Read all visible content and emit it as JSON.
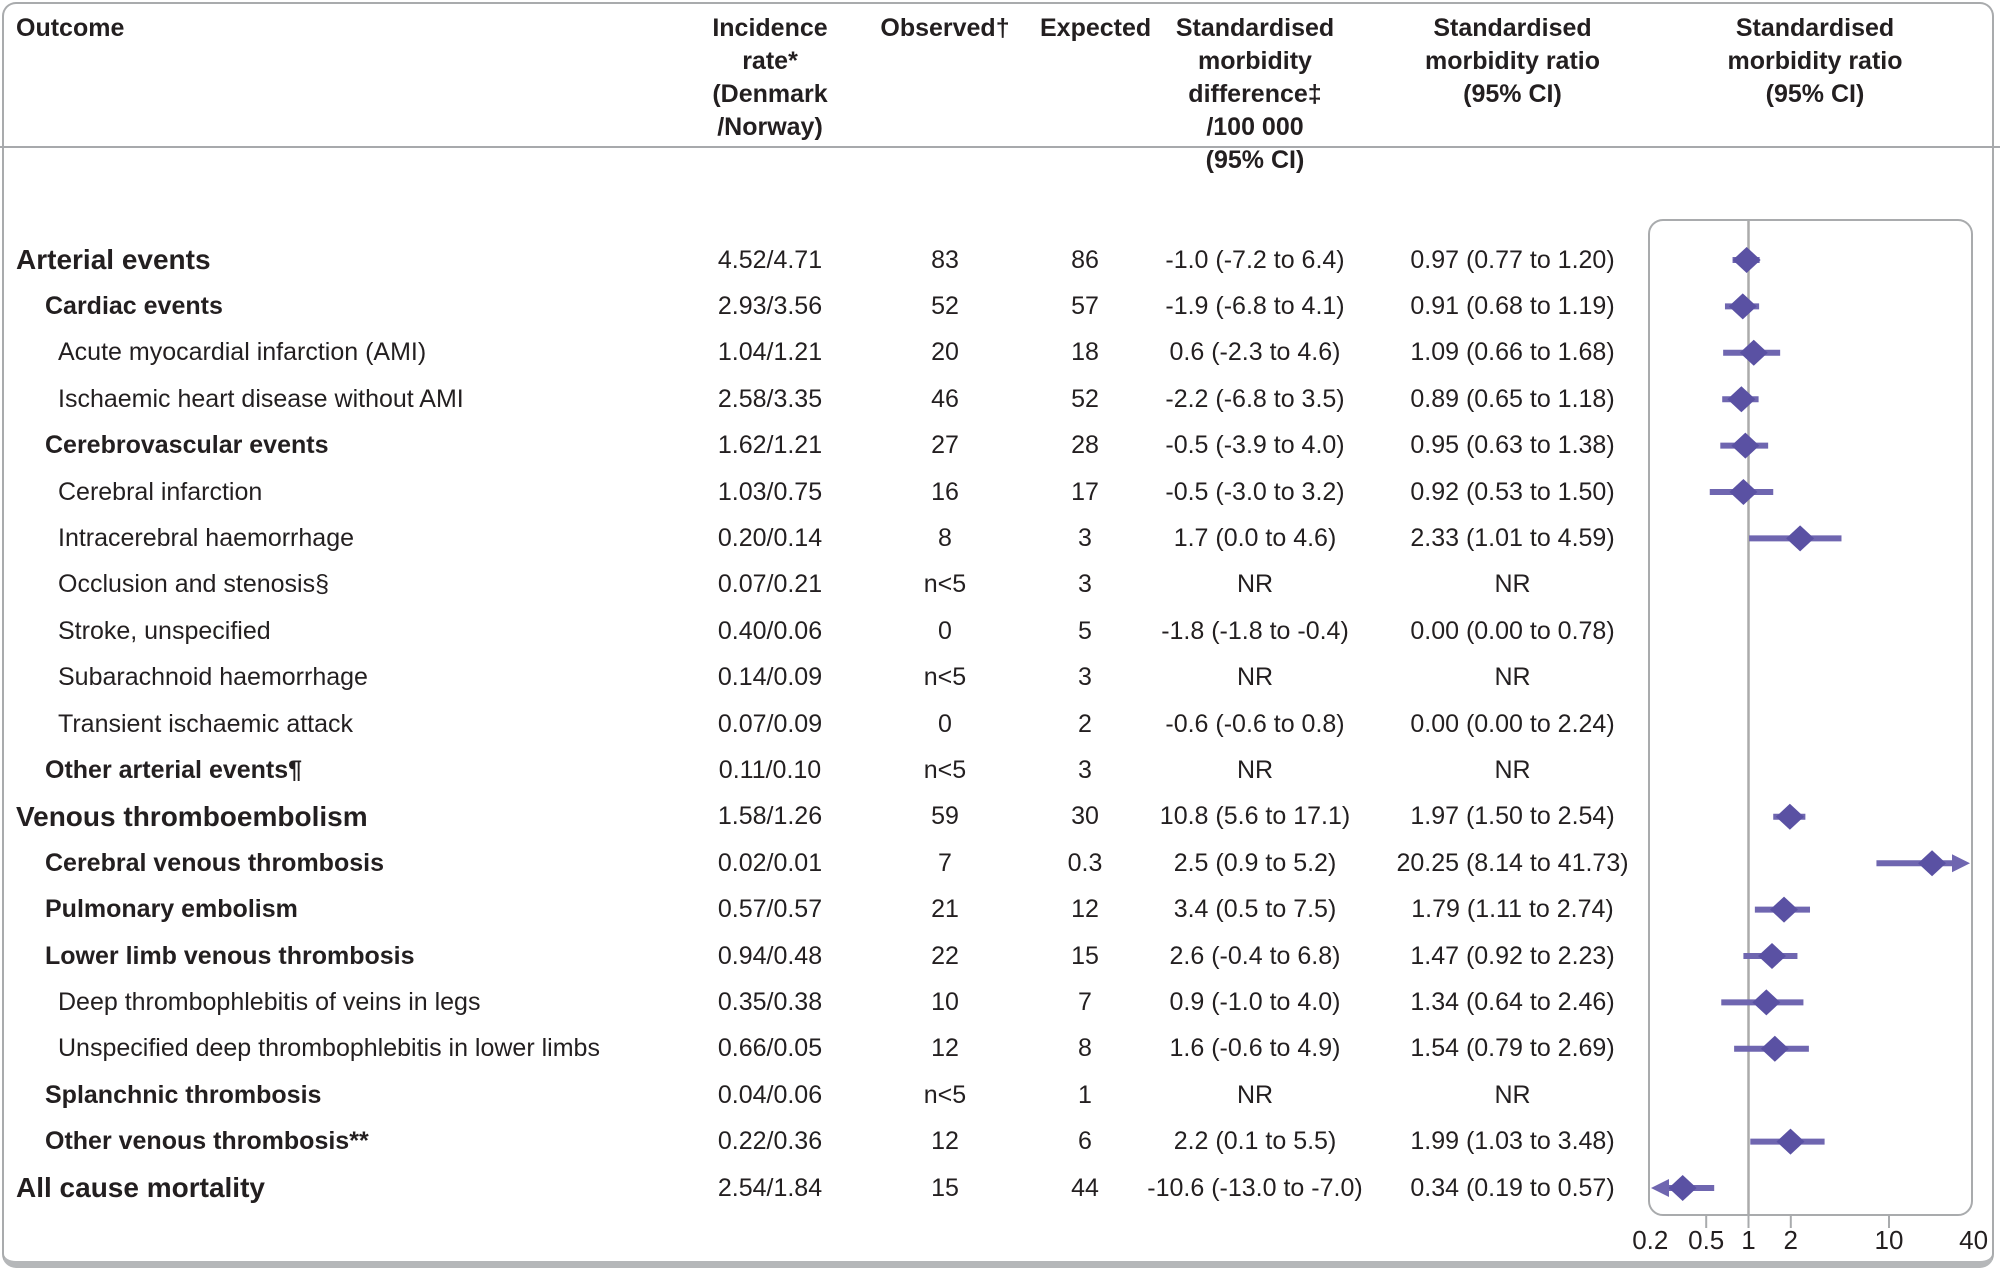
{
  "header": {
    "outcome": "Outcome",
    "incidence": "Incidence rate*\n(Denmark\n/Norway)",
    "observed": "Observed†",
    "expected": "Expected",
    "smd": "Standardised\nmorbidity\ndifference‡\n/100 000\n(95% CI)",
    "smr": "Standardised\nmorbidity ratio\n(95% CI)",
    "smr_plot": "Standardised\nmorbidity ratio\n(95% CI)"
  },
  "colors": {
    "diamond": "#5a51a3",
    "ci_line": "#6f66b0",
    "frame": "#a9abad",
    "ref_line": "#ababab",
    "text": "#231f20",
    "bottom_bar": "#b5b7b9"
  },
  "rows": [
    {
      "label": "Arterial events",
      "level": 0,
      "incidence": "4.52/4.71",
      "observed": "83",
      "expected": "86",
      "smd": "-1.0 (-7.2 to 6.4)",
      "smr": "0.97 (0.77 to 1.20)"
    },
    {
      "label": "Cardiac events",
      "level": 1,
      "incidence": "2.93/3.56",
      "observed": "52",
      "expected": "57",
      "smd": "-1.9 (-6.8 to 4.1)",
      "smr": "0.91 (0.68 to 1.19)"
    },
    {
      "label": "Acute myocardial infarction (AMI)",
      "level": 2,
      "incidence": "1.04/1.21",
      "observed": "20",
      "expected": "18",
      "smd": "0.6 (-2.3 to 4.6)",
      "smr": "1.09 (0.66 to 1.68)"
    },
    {
      "label": "Ischaemic heart disease without AMI",
      "level": 2,
      "incidence": "2.58/3.35",
      "observed": "46",
      "expected": "52",
      "smd": "-2.2 (-6.8 to 3.5)",
      "smr": "0.89 (0.65 to 1.18)"
    },
    {
      "label": "Cerebrovascular events",
      "level": 1,
      "incidence": "1.62/1.21",
      "observed": "27",
      "expected": "28",
      "smd": "-0.5 (-3.9 to 4.0)",
      "smr": "0.95 (0.63 to 1.38)"
    },
    {
      "label": "Cerebral infarction",
      "level": 2,
      "incidence": "1.03/0.75",
      "observed": "16",
      "expected": "17",
      "smd": "-0.5 (-3.0 to 3.2)",
      "smr": "0.92 (0.53 to 1.50)"
    },
    {
      "label": "Intracerebral haemorrhage",
      "level": 2,
      "incidence": "0.20/0.14",
      "observed": "8",
      "expected": "3",
      "smd": "1.7 (0.0 to 4.6)",
      "smr": "2.33 (1.01 to 4.59)"
    },
    {
      "label": "Occlusion and stenosis§",
      "level": 2,
      "incidence": "0.07/0.21",
      "observed": "n<5",
      "expected": "3",
      "smd": "NR",
      "smr": "NR"
    },
    {
      "label": "Stroke, unspecified",
      "level": 2,
      "incidence": "0.40/0.06",
      "observed": "0",
      "expected": "5",
      "smd": "-1.8 (-1.8 to -0.4)",
      "smr": "0.00 (0.00 to 0.78)"
    },
    {
      "label": "Subarachnoid haemorrhage",
      "level": 2,
      "incidence": "0.14/0.09",
      "observed": "n<5",
      "expected": "3",
      "smd": "NR",
      "smr": "NR"
    },
    {
      "label": "Transient ischaemic attack",
      "level": 2,
      "incidence": "0.07/0.09",
      "observed": "0",
      "expected": "2",
      "smd": "-0.6 (-0.6 to 0.8)",
      "smr": "0.00 (0.00 to 2.24)"
    },
    {
      "label": "Other arterial events¶",
      "level": 1,
      "incidence": "0.11/0.10",
      "observed": "n<5",
      "expected": "3",
      "smd": "NR",
      "smr": "NR"
    },
    {
      "label": "Venous thromboembolism",
      "level": 0,
      "incidence": "1.58/1.26",
      "observed": "59",
      "expected": "30",
      "smd": "10.8 (5.6 to 17.1)",
      "smr": "1.97 (1.50 to 2.54)"
    },
    {
      "label": "Cerebral venous thrombosis",
      "level": 1,
      "incidence": "0.02/0.01",
      "observed": "7",
      "expected": "0.3",
      "smd": "2.5 (0.9 to 5.2)",
      "smr": "20.25 (8.14 to 41.73)"
    },
    {
      "label": "Pulmonary embolism",
      "level": 1,
      "incidence": "0.57/0.57",
      "observed": "21",
      "expected": "12",
      "smd": "3.4 (0.5 to 7.5)",
      "smr": "1.79 (1.11 to 2.74)"
    },
    {
      "label": "Lower limb venous thrombosis",
      "level": 1,
      "incidence": "0.94/0.48",
      "observed": "22",
      "expected": "15",
      "smd": "2.6 (-0.4 to 6.8)",
      "smr": "1.47 (0.92 to 2.23)"
    },
    {
      "label": "Deep thrombophlebitis of veins in legs",
      "level": 2,
      "incidence": "0.35/0.38",
      "observed": "10",
      "expected": "7",
      "smd": "0.9 (-1.0 to 4.0)",
      "smr": "1.34 (0.64 to 2.46)"
    },
    {
      "label": "Unspecified deep thrombophlebitis in lower limbs",
      "level": 2,
      "incidence": "0.66/0.05",
      "observed": "12",
      "expected": "8",
      "smd": "1.6 (-0.6 to 4.9)",
      "smr": "1.54 (0.79 to 2.69)"
    },
    {
      "label": "Splanchnic thrombosis",
      "level": 1,
      "incidence": "0.04/0.06",
      "observed": "n<5",
      "expected": "1",
      "smd": "NR",
      "smr": "NR"
    },
    {
      "label": "Other venous thrombosis**",
      "level": 1,
      "incidence": "0.22/0.36",
      "observed": "12",
      "expected": "6",
      "smd": "2.2 (0.1 to 5.5)",
      "smr": "1.99 (1.03 to 3.48)"
    },
    {
      "label": "All cause mortality",
      "level": 0,
      "incidence": "2.54/1.84",
      "observed": "15",
      "expected": "44",
      "smd": "-10.6 (-13.0 to -7.0)",
      "smr": "0.34 (0.19 to 0.57)"
    }
  ],
  "chart_data": {
    "type": "forest",
    "title": "Standardised morbidity ratio (95% CI)",
    "x_scale": "log",
    "x_range": [
      0.2,
      40
    ],
    "x_ticks": [
      0.2,
      0.5,
      1,
      2,
      10,
      40
    ],
    "tick_marks": [
      0.5,
      1,
      2,
      10
    ],
    "reference_value": 1,
    "points": [
      {
        "label": "Arterial events",
        "smr": 0.97,
        "lo": 0.77,
        "hi": 1.2
      },
      {
        "label": "Cardiac events",
        "smr": 0.91,
        "lo": 0.68,
        "hi": 1.19
      },
      {
        "label": "Acute myocardial infarction (AMI)",
        "smr": 1.09,
        "lo": 0.66,
        "hi": 1.68
      },
      {
        "label": "Ischaemic heart disease without AMI",
        "smr": 0.89,
        "lo": 0.65,
        "hi": 1.18
      },
      {
        "label": "Cerebrovascular events",
        "smr": 0.95,
        "lo": 0.63,
        "hi": 1.38
      },
      {
        "label": "Cerebral infarction",
        "smr": 0.92,
        "lo": 0.53,
        "hi": 1.5
      },
      {
        "label": "Intracerebral haemorrhage",
        "smr": 2.33,
        "lo": 1.01,
        "hi": 4.59
      },
      {
        "label": "Occlusion and stenosis§",
        "smr": null
      },
      {
        "label": "Stroke, unspecified",
        "smr": null
      },
      {
        "label": "Subarachnoid haemorrhage",
        "smr": null
      },
      {
        "label": "Transient ischaemic attack",
        "smr": null
      },
      {
        "label": "Other arterial events¶",
        "smr": null
      },
      {
        "label": "Venous thromboembolism",
        "smr": 1.97,
        "lo": 1.5,
        "hi": 2.54
      },
      {
        "label": "Cerebral venous thrombosis",
        "smr": 20.25,
        "lo": 8.14,
        "hi": 41.73
      },
      {
        "label": "Pulmonary embolism",
        "smr": 1.79,
        "lo": 1.11,
        "hi": 2.74
      },
      {
        "label": "Lower limb venous thrombosis",
        "smr": 1.47,
        "lo": 0.92,
        "hi": 2.23
      },
      {
        "label": "Deep thrombophlebitis of veins in legs",
        "smr": 1.34,
        "lo": 0.64,
        "hi": 2.46
      },
      {
        "label": "Unspecified deep thrombophlebitis in lower limbs",
        "smr": 1.54,
        "lo": 0.79,
        "hi": 2.69
      },
      {
        "label": "Splanchnic thrombosis",
        "smr": null
      },
      {
        "label": "Other venous thrombosis**",
        "smr": 1.99,
        "lo": 1.03,
        "hi": 3.48
      },
      {
        "label": "All cause mortality",
        "smr": 0.34,
        "lo": 0.19,
        "hi": 0.57
      }
    ]
  }
}
